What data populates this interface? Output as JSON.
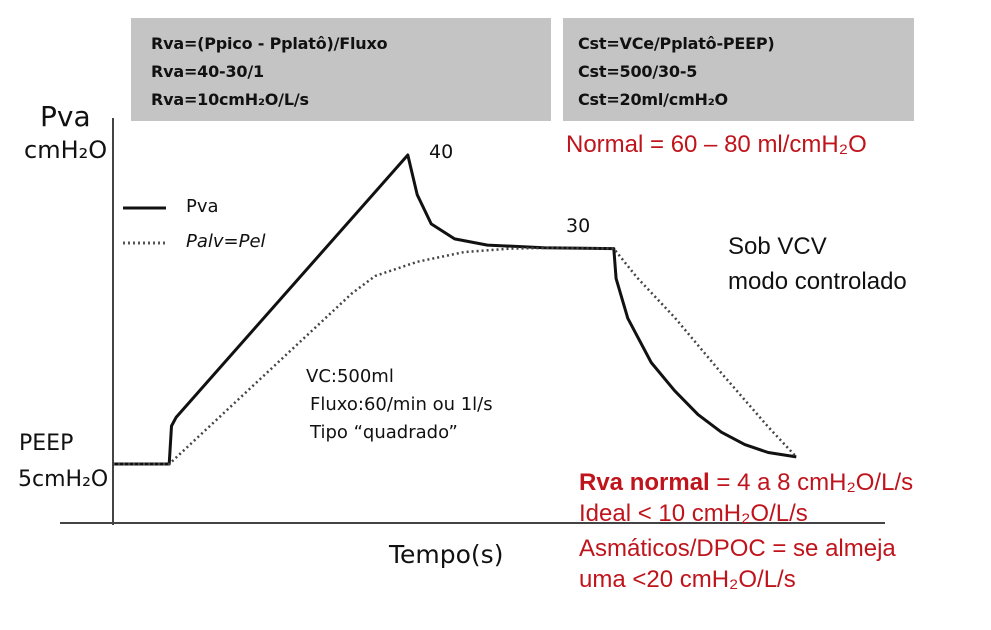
{
  "formula_boxes": {
    "resistance": {
      "line1": "Rva=(Ppico - Pplatô)/Fluxo",
      "line2": "Rva=40-30/1",
      "line3": "Rva=10cmH₂O/L/s"
    },
    "compliance": {
      "line1": "Cst=VCe/Pplatô-PEEP)",
      "line2": "Cst=500/30-5",
      "line3": "Cst=20ml/cmH₂O"
    }
  },
  "compliance_normal": "Normal = 60 – 80 ml/cmH₂O",
  "mode_note": {
    "line1": "Sob VCV",
    "line2": "modo controlado"
  },
  "ventilator_settings": {
    "volume": "VC:500ml",
    "flow": "Fluxo:60/min ou 1l/s",
    "waveform": "Tipo “quadrado”"
  },
  "resistance_reference": {
    "label_bold": "Rva normal",
    "line1_rest": " = 4 a 8  cmH₂O/L/s",
    "line2": "Ideal < 10 cmH₂O/L/s",
    "line3": "Asmáticos/DPOC =  se almeja",
    "line4": "uma <20 cmH₂O/L/s"
  },
  "chart_data": {
    "type": "line",
    "title": "",
    "xlabel": "Tempo(s)",
    "ylabel_line1": "Pva",
    "ylabel_line2": "cmH₂O",
    "peep_label_line1": "PEEP",
    "peep_label_line2": "5cmH₂O",
    "peak_label": "40",
    "plateau_label": "30",
    "legend_position": "top-left",
    "grid": false,
    "ylim": [
      0,
      45
    ],
    "series": [
      {
        "name": "Pva",
        "style": "solid",
        "color": "#111111",
        "x": [
          0,
          1.2,
          1.25,
          1.35,
          6.3,
          6.5,
          6.8,
          7.3,
          8.0,
          9.2,
          10.7,
          10.75,
          11.0,
          11.5,
          12.0,
          12.5,
          13.0,
          13.5,
          14.0,
          14.6
        ],
        "y": [
          5,
          5,
          9.3,
          10.3,
          40,
          35.5,
          32.2,
          30.5,
          29.8,
          29.5,
          29.4,
          26,
          21.5,
          16.5,
          13.3,
          10.6,
          8.6,
          7.2,
          6.3,
          5.8
        ]
      },
      {
        "name": "Palv=Pel",
        "style": "dotted",
        "color": "#444444",
        "x": [
          0,
          1.2,
          5.1,
          5.6,
          6.5,
          7.5,
          8.5,
          9.5,
          10.7,
          11.2,
          12.0,
          13.0,
          14.0,
          14.6
        ],
        "y": [
          5,
          5,
          24.3,
          26.3,
          27.9,
          29,
          29.4,
          29.5,
          29.4,
          26.1,
          21.6,
          15.3,
          9.2,
          5.8
        ]
      }
    ]
  }
}
